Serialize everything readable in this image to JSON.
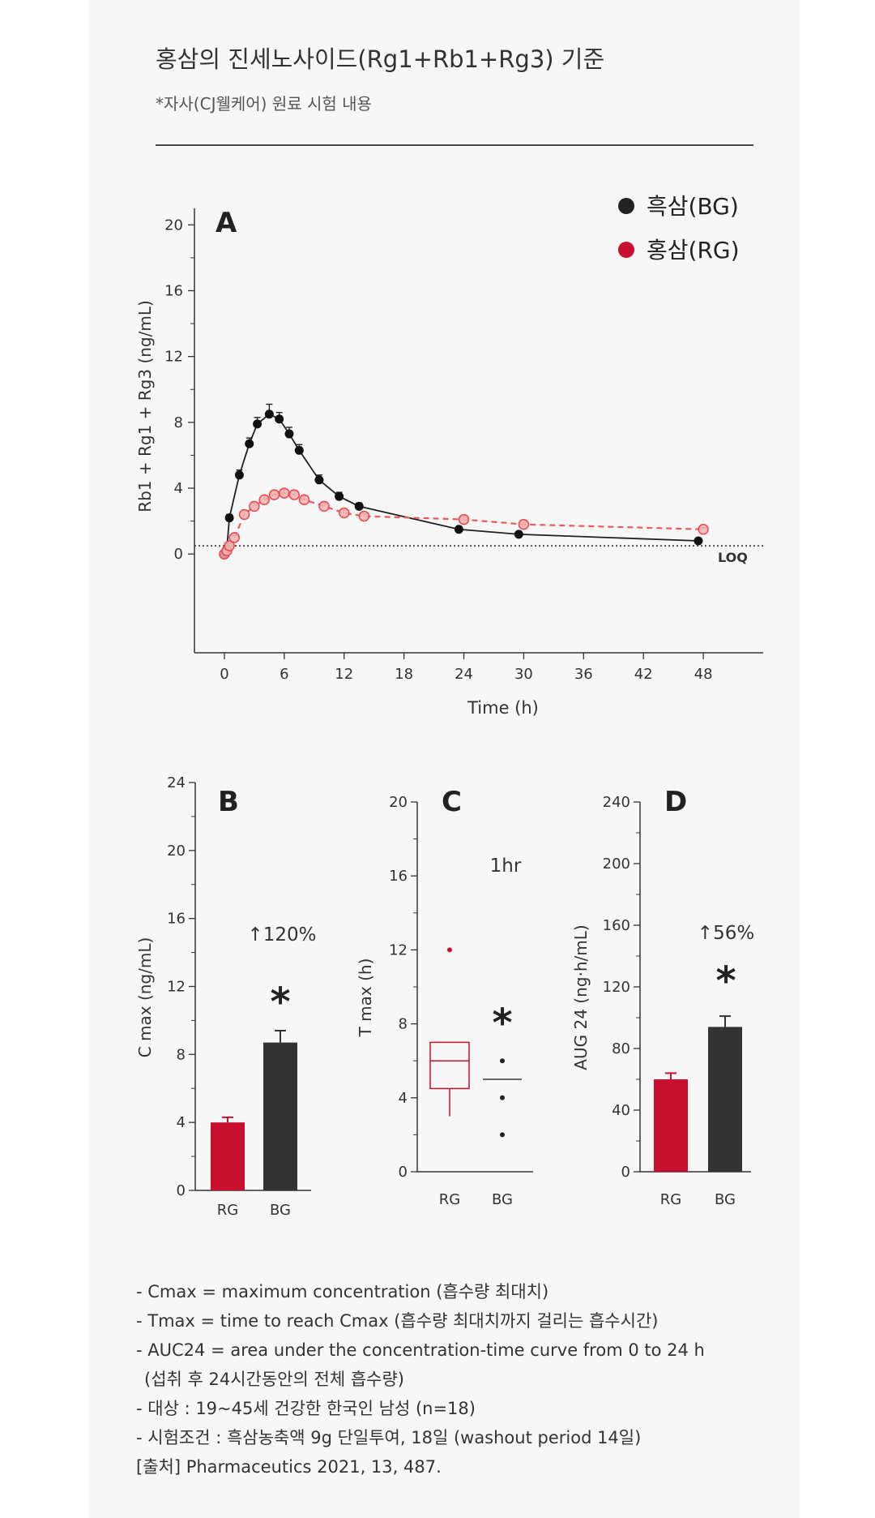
{
  "header": {
    "title": "홍삼의 진세노사이드(Rg1+Rb1+Rg3) 기준",
    "subtitle": "*자사(CJ웰케어) 원료 시험 내용"
  },
  "colors": {
    "bg": "#333333",
    "rg": "#c8102e",
    "rg_light": "#e8474f"
  },
  "chart_data": [
    {
      "id": "A",
      "type": "line",
      "panel_label": "A",
      "xlabel": "Time (h)",
      "ylabel": "Rb1 + Rg1 + Rg3 (ng/mL)",
      "xlim": [
        -3,
        54
      ],
      "ylim": [
        -6,
        21
      ],
      "xticks": [
        0,
        6,
        12,
        18,
        24,
        30,
        36,
        42,
        48
      ],
      "yticks": [
        0,
        4,
        8,
        12,
        16,
        20
      ],
      "loq": {
        "value": 0.5,
        "label": "LOQ"
      },
      "legend": {
        "placement": "top-right",
        "entries": [
          "흑삼(BG)",
          "홍삼(RG)"
        ]
      },
      "series": [
        {
          "name": "흑삼(BG)",
          "color": "#111111",
          "style": "solid",
          "x": [
            0,
            0.25,
            0.5,
            1.5,
            2.5,
            3.3,
            4.5,
            5.5,
            6.5,
            7.5,
            9.5,
            11.5,
            13.5,
            23.5,
            29.5,
            47.5
          ],
          "y": [
            0,
            0.3,
            2.2,
            4.8,
            6.7,
            7.9,
            8.5,
            8.2,
            7.3,
            6.3,
            4.5,
            3.5,
            2.9,
            1.5,
            1.2,
            0.8
          ],
          "err": [
            0,
            0.1,
            0.2,
            0.3,
            0.35,
            0.4,
            0.6,
            0.4,
            0.4,
            0.35,
            0.3,
            0.25,
            0.2,
            0.1,
            0.1,
            0.1
          ]
        },
        {
          "name": "홍삼(RG)",
          "color": "#e8474f",
          "style": "dashed",
          "x": [
            0,
            0.25,
            0.5,
            1,
            2,
            3,
            4,
            5,
            6,
            7,
            8,
            10,
            12,
            14,
            24,
            30,
            48
          ],
          "y": [
            0,
            0.2,
            0.5,
            1.0,
            2.4,
            2.9,
            3.3,
            3.6,
            3.7,
            3.6,
            3.3,
            2.9,
            2.5,
            2.3,
            2.1,
            1.8,
            1.5
          ],
          "err": [
            0,
            0.1,
            0.1,
            0.15,
            0.2,
            0.2,
            0.25,
            0.25,
            0.25,
            0.25,
            0.2,
            0.2,
            0.2,
            0.15,
            0.15,
            0.15,
            0.1
          ]
        }
      ]
    },
    {
      "id": "B",
      "type": "bar",
      "panel_label": "B",
      "ylabel": "C max (ng/mL)",
      "ylim": [
        0,
        24
      ],
      "yticks": [
        0,
        4,
        8,
        12,
        16,
        20,
        24
      ],
      "categories": [
        "RG",
        "BG"
      ],
      "values": [
        4.0,
        8.7
      ],
      "err": [
        0.3,
        0.7
      ],
      "annotation": "↑120%",
      "significance": "*"
    },
    {
      "id": "C",
      "type": "box",
      "panel_label": "C",
      "ylabel": "T max (h)",
      "ylim": [
        0,
        20
      ],
      "yticks": [
        0,
        4,
        8,
        12,
        16,
        20
      ],
      "categories": [
        "RG",
        "BG"
      ],
      "rg_box": {
        "whisker_low": 3,
        "q1": 4.5,
        "median": 6,
        "q3": 7,
        "outliers": [
          12
        ]
      },
      "bg_box": {
        "median": 5,
        "points": [
          6,
          4,
          2
        ]
      },
      "annotation": "1hr",
      "significance": "*"
    },
    {
      "id": "D",
      "type": "bar",
      "panel_label": "D",
      "ylabel": "AUG 24 (ng·h/mL)",
      "ylim": [
        0,
        240
      ],
      "yticks": [
        0,
        40,
        80,
        120,
        160,
        200,
        240
      ],
      "categories": [
        "RG",
        "BG"
      ],
      "values": [
        60,
        94
      ],
      "err": [
        4,
        7
      ],
      "annotation": "↑56%",
      "significance": "*"
    }
  ],
  "notes": [
    "- Cmax = maximum concentration (흡수량 최대치)",
    "- Tmax = time to reach Cmax (흡수량 최대치까지 걸리는 흡수시간)",
    "- AUC24 = area under the concentration-time curve from 0 to 24 h",
    "(섭취 후 24시간동안의 전체 흡수량)",
    "- 대상 : 19~45세 건강한 한국인 남성 (n=18)",
    "- 시험조건 : 흑삼농축액 9g 단일투여, 18일 (washout period 14일)",
    "[출처] Pharmaceutics 2021, 13, 487."
  ]
}
